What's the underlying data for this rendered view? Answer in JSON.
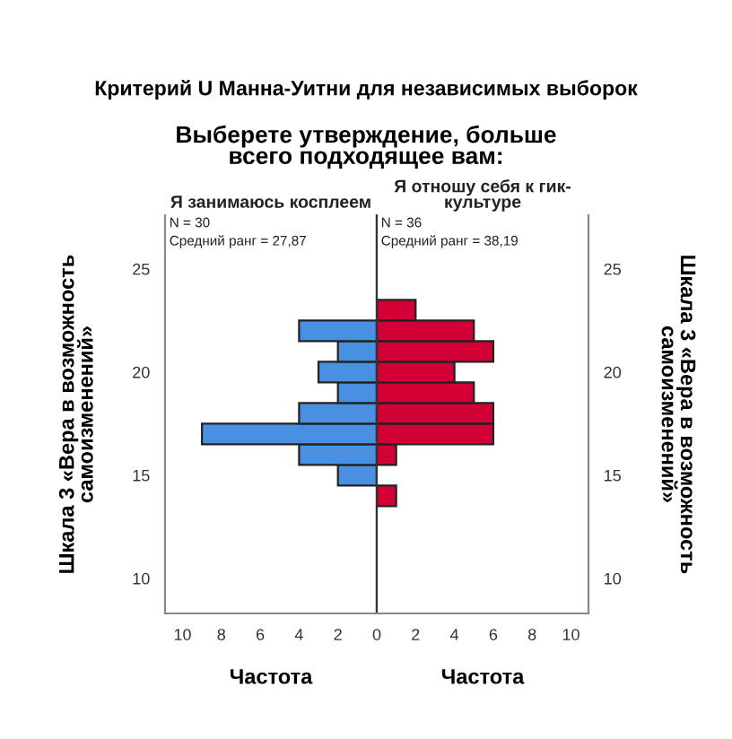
{
  "chart_data": [
    {
      "type": "bar",
      "orientation": "horizontal",
      "title": "Критерий U Манна-Уитни для независимых выборок",
      "legend_title": "Выберете утверждение, больше всего подходящее вам:",
      "subtitle": "Я занимаюсь косплеем",
      "xlabel": "Частота",
      "ylabel": "Шкала 3 «Вера в возможность самоизменений»",
      "x": [
        15,
        16,
        17,
        18,
        19,
        20,
        21,
        22
      ],
      "values": [
        2,
        4,
        9,
        4,
        2,
        3,
        2,
        4
      ],
      "color": "#4a90e2",
      "xlim": [
        10.9,
        0
      ],
      "xticks": [
        10,
        8,
        6,
        4,
        2,
        0
      ],
      "ylim": [
        8.3,
        27.6
      ],
      "yticks": [
        10,
        15,
        20,
        25
      ],
      "annotations": [
        "N = 30",
        "Средний ранг = 27,87"
      ]
    },
    {
      "type": "bar",
      "orientation": "horizontal",
      "subtitle": "Я отношу себя к гик-культуре",
      "xlabel": "Частота",
      "ylabel": "Шкала 3 «Вера в возможность самоизменений»",
      "x": [
        14,
        16,
        17,
        18,
        19,
        20,
        21,
        22,
        23
      ],
      "values": [
        1,
        1,
        6,
        6,
        5,
        4,
        6,
        5,
        2
      ],
      "color": "#d20035",
      "xlim": [
        0,
        10.9
      ],
      "xticks": [
        2,
        4,
        6,
        8,
        10
      ],
      "ylim": [
        8.3,
        27.6
      ],
      "yticks": [
        10,
        15,
        20,
        25
      ],
      "annotations": [
        "N = 36",
        "Средний ранг = 38,19"
      ]
    }
  ]
}
